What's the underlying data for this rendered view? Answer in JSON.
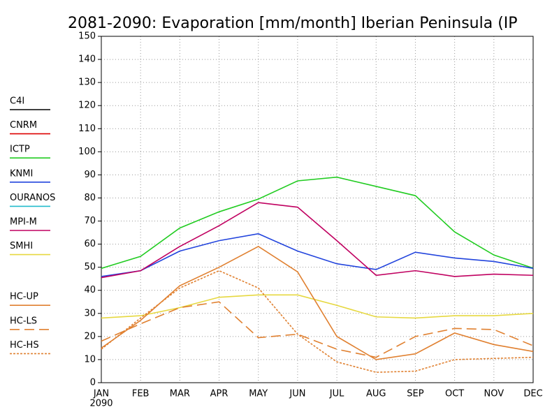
{
  "chart_data": {
    "type": "line",
    "title": "2081-2090: Evaporation [mm/month] Iberian Peninsula (IP",
    "categories": [
      "JAN",
      "FEB",
      "MAR",
      "APR",
      "MAY",
      "JUN",
      "JUL",
      "AUG",
      "SEP",
      "OCT",
      "NOV",
      "DEC"
    ],
    "year_label": "2090",
    "ylim": [
      0,
      150
    ],
    "yticks": [
      0,
      10,
      20,
      30,
      40,
      50,
      60,
      70,
      80,
      90,
      100,
      110,
      120,
      130,
      140,
      150
    ],
    "grid": true,
    "series": [
      {
        "name": "C4I",
        "color": "#000000",
        "dash": "solid",
        "values": [
          null,
          null,
          null,
          null,
          null,
          null,
          null,
          null,
          null,
          null,
          null,
          null
        ]
      },
      {
        "name": "CNRM",
        "color": "#dd0000",
        "dash": "solid",
        "values": [
          null,
          null,
          null,
          null,
          null,
          null,
          null,
          null,
          null,
          null,
          null,
          null
        ]
      },
      {
        "name": "ICTP",
        "color": "#22cc22",
        "dash": "solid",
        "values": [
          49.5,
          54.7,
          67,
          74,
          79.5,
          87.4,
          89,
          85,
          81,
          65.3,
          55.3,
          49.6
        ]
      },
      {
        "name": "KNMI",
        "color": "#2244dd",
        "dash": "solid",
        "values": [
          46,
          48.5,
          57,
          61.5,
          64.5,
          57,
          51.5,
          49,
          56.5,
          54,
          52.5,
          49.5
        ]
      },
      {
        "name": "OURANOS",
        "color": "#22bbcc",
        "dash": "solid",
        "values": [
          null,
          null,
          null,
          null,
          null,
          null,
          null,
          null,
          null,
          null,
          null,
          null
        ]
      },
      {
        "name": "MPI-M",
        "color": "#c00060",
        "dash": "solid",
        "values": [
          45.5,
          48.5,
          59,
          68,
          78,
          76,
          61.5,
          46.5,
          48.5,
          46,
          47,
          46.5
        ]
      },
      {
        "name": "SMHI",
        "color": "#e6d840",
        "dash": "solid",
        "values": [
          28,
          29,
          32.5,
          37,
          38,
          38,
          33.5,
          28.5,
          28,
          29,
          29,
          30
        ]
      },
      {
        "name": "HC-UP",
        "color": "#e08030",
        "dash": "solid",
        "values": [
          15,
          27,
          42,
          50,
          59,
          48,
          20,
          10,
          12.5,
          21.5,
          16.5,
          13.5
        ]
      },
      {
        "name": "HC-LS",
        "color": "#e08030",
        "dash": "dashed",
        "values": [
          18,
          25.5,
          32.5,
          35,
          19.5,
          21,
          14.5,
          11,
          20,
          23.5,
          23,
          16
        ]
      },
      {
        "name": "HC-HS",
        "color": "#e08030",
        "dash": "dotted",
        "values": [
          14.5,
          28,
          41,
          48.5,
          41,
          21,
          9,
          4.5,
          5,
          10,
          10.5,
          11
        ]
      }
    ]
  }
}
